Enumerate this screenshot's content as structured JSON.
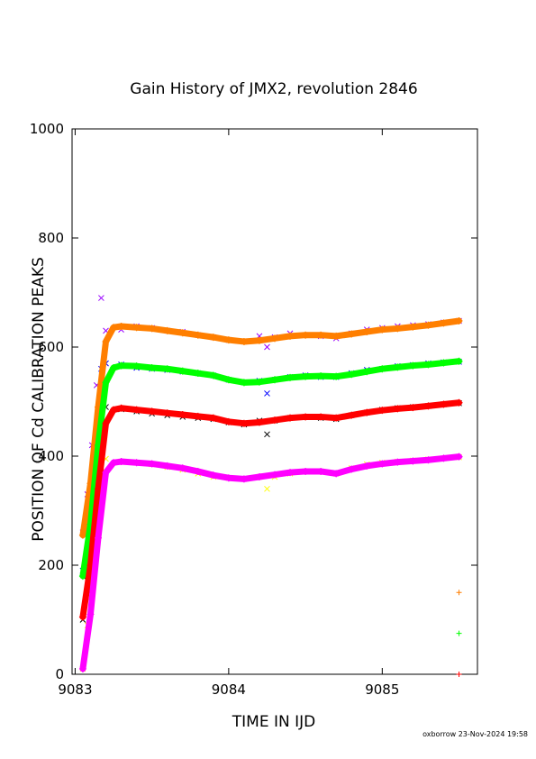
{
  "chart_data": {
    "type": "scatter",
    "title": "Gain History of JMX2, revolution 2846",
    "xlabel": "TIME IN IJD",
    "ylabel": "POSITION OF Cd CALIBRATION PEAKS",
    "xlim": [
      9082.98,
      9085.62
    ],
    "ylim": [
      0,
      1000
    ],
    "x_ticks": [
      9083,
      9084,
      9085
    ],
    "y_ticks": [
      0,
      200,
      400,
      600,
      800,
      1000
    ],
    "x_tick_labels": [
      "9083",
      "9084",
      "9085"
    ],
    "y_tick_labels": [
      "0",
      "200",
      "400",
      "600",
      "800",
      "1000"
    ],
    "grid": false,
    "legend": "none",
    "footer": "oxborrow 23-Nov-2024 19:58",
    "series": [
      {
        "kind": "raw",
        "marker": "x",
        "color": "#9900ff",
        "x": [
          9083.05,
          9083.08,
          9083.11,
          9083.14,
          9083.17,
          9083.2,
          9083.3,
          9083.4,
          9083.5,
          9083.6,
          9083.7,
          9083.8,
          9083.9,
          9084.0,
          9084.1,
          9084.2,
          9084.25,
          9084.3,
          9084.4,
          9084.5,
          9084.6,
          9084.7,
          9084.8,
          9084.9,
          9085.0,
          9085.1,
          9085.2,
          9085.3,
          9085.4,
          9085.5
        ],
        "y": [
          260,
          330,
          420,
          530,
          690,
          630,
          632,
          638,
          635,
          630,
          628,
          622,
          618,
          613,
          610,
          620,
          600,
          618,
          625,
          622,
          620,
          616,
          625,
          632,
          635,
          638,
          640,
          642,
          645,
          648
        ]
      },
      {
        "kind": "raw",
        "marker": "x",
        "color": "#0000ff",
        "x": [
          9083.05,
          9083.08,
          9083.11,
          9083.14,
          9083.17,
          9083.2,
          9083.3,
          9083.4,
          9083.5,
          9083.6,
          9083.7,
          9083.8,
          9083.9,
          9084.0,
          9084.1,
          9084.2,
          9084.25,
          9084.3,
          9084.4,
          9084.5,
          9084.6,
          9084.7,
          9084.8,
          9084.9,
          9085.0,
          9085.1,
          9085.2,
          9085.3,
          9085.4,
          9085.5
        ],
        "y": [
          190,
          260,
          350,
          450,
          560,
          570,
          568,
          562,
          560,
          558,
          555,
          552,
          548,
          540,
          535,
          538,
          515,
          540,
          545,
          548,
          545,
          545,
          552,
          558,
          560,
          565,
          567,
          570,
          572,
          573
        ]
      },
      {
        "kind": "raw",
        "marker": "x",
        "color": "#000000",
        "x": [
          9083.05,
          9083.08,
          9083.11,
          9083.14,
          9083.17,
          9083.2,
          9083.3,
          9083.4,
          9083.5,
          9083.6,
          9083.7,
          9083.8,
          9083.9,
          9084.0,
          9084.1,
          9084.2,
          9084.25,
          9084.3,
          9084.4,
          9084.5,
          9084.6,
          9084.7,
          9084.8,
          9084.9,
          9085.0,
          9085.1,
          9085.2,
          9085.3,
          9085.4,
          9085.5
        ],
        "y": [
          100,
          180,
          280,
          380,
          470,
          490,
          486,
          482,
          478,
          475,
          472,
          470,
          468,
          462,
          458,
          465,
          440,
          465,
          470,
          472,
          470,
          468,
          475,
          480,
          485,
          488,
          490,
          492,
          495,
          497
        ]
      },
      {
        "kind": "raw",
        "marker": "x",
        "color": "#ffff00",
        "x": [
          9083.05,
          9083.08,
          9083.11,
          9083.14,
          9083.17,
          9083.2,
          9083.3,
          9083.4,
          9083.5,
          9083.6,
          9083.7,
          9083.8,
          9083.9,
          9084.0,
          9084.1,
          9084.2,
          9084.25,
          9084.3,
          9084.4,
          9084.5,
          9084.6,
          9084.7,
          9084.8,
          9084.9,
          9085.0,
          9085.1,
          9085.2,
          9085.3,
          9085.4,
          9085.5
        ],
        "y": [
          10,
          90,
          200,
          300,
          380,
          395,
          390,
          388,
          385,
          380,
          375,
          368,
          362,
          360,
          358,
          362,
          340,
          362,
          368,
          372,
          372,
          368,
          378,
          385,
          388,
          390,
          392,
          394,
          396,
          398
        ]
      },
      {
        "kind": "fit",
        "marker": "+",
        "color": "#ff7f00",
        "x": [
          9083.05,
          9083.1,
          9083.15,
          9083.2,
          9083.25,
          9083.3,
          9083.4,
          9083.5,
          9083.6,
          9083.7,
          9083.8,
          9083.9,
          9084.0,
          9084.1,
          9084.2,
          9084.3,
          9084.4,
          9084.5,
          9084.6,
          9084.7,
          9084.8,
          9084.9,
          9085.0,
          9085.1,
          9085.2,
          9085.3,
          9085.4,
          9085.5
        ],
        "y": [
          255,
          350,
          490,
          610,
          636,
          638,
          636,
          634,
          630,
          626,
          622,
          618,
          613,
          610,
          612,
          616,
          620,
          622,
          622,
          620,
          624,
          628,
          632,
          634,
          637,
          640,
          644,
          648
        ]
      },
      {
        "kind": "fit",
        "marker": "+",
        "color": "#00ff00",
        "x": [
          9083.05,
          9083.1,
          9083.15,
          9083.2,
          9083.25,
          9083.3,
          9083.4,
          9083.5,
          9083.6,
          9083.7,
          9083.8,
          9083.9,
          9084.0,
          9084.1,
          9084.2,
          9084.3,
          9084.4,
          9084.5,
          9084.6,
          9084.7,
          9084.8,
          9084.9,
          9085.0,
          9085.1,
          9085.2,
          9085.3,
          9085.4,
          9085.5
        ],
        "y": [
          180,
          275,
          420,
          535,
          562,
          566,
          565,
          562,
          560,
          556,
          552,
          548,
          540,
          535,
          536,
          540,
          544,
          546,
          547,
          546,
          550,
          555,
          560,
          563,
          566,
          568,
          571,
          574
        ]
      },
      {
        "kind": "fit",
        "marker": "+",
        "color": "#ff0000",
        "x": [
          9083.05,
          9083.1,
          9083.15,
          9083.2,
          9083.25,
          9083.3,
          9083.4,
          9083.5,
          9083.6,
          9083.7,
          9083.8,
          9083.9,
          9084.0,
          9084.1,
          9084.2,
          9084.3,
          9084.4,
          9084.5,
          9084.6,
          9084.7,
          9084.8,
          9084.9,
          9085.0,
          9085.1,
          9085.2,
          9085.3,
          9085.4,
          9085.5
        ],
        "y": [
          105,
          200,
          340,
          460,
          485,
          488,
          485,
          482,
          479,
          476,
          473,
          470,
          463,
          460,
          462,
          466,
          470,
          472,
          472,
          470,
          475,
          480,
          484,
          487,
          489,
          492,
          495,
          498
        ]
      },
      {
        "kind": "fit",
        "marker": "+",
        "color": "#ff00ff",
        "x": [
          9083.05,
          9083.1,
          9083.15,
          9083.2,
          9083.25,
          9083.3,
          9083.4,
          9083.5,
          9083.6,
          9083.7,
          9083.8,
          9083.9,
          9084.0,
          9084.1,
          9084.2,
          9084.3,
          9084.4,
          9084.5,
          9084.6,
          9084.7,
          9084.8,
          9084.9,
          9085.0,
          9085.1,
          9085.2,
          9085.3,
          9085.4,
          9085.5
        ],
        "y": [
          10,
          110,
          250,
          370,
          388,
          390,
          388,
          386,
          382,
          378,
          372,
          365,
          360,
          358,
          362,
          366,
          370,
          372,
          372,
          368,
          376,
          382,
          386,
          389,
          391,
          393,
          396,
          399
        ]
      },
      {
        "kind": "reference",
        "marker": "+",
        "color": "#ff7f00",
        "x": [
          9085.5
        ],
        "y": [
          150
        ]
      },
      {
        "kind": "reference",
        "marker": "+",
        "color": "#00ff00",
        "x": [
          9085.5
        ],
        "y": [
          75
        ]
      },
      {
        "kind": "reference",
        "marker": "+",
        "color": "#ff0000",
        "x": [
          9085.5
        ],
        "y": [
          0
        ]
      }
    ]
  }
}
